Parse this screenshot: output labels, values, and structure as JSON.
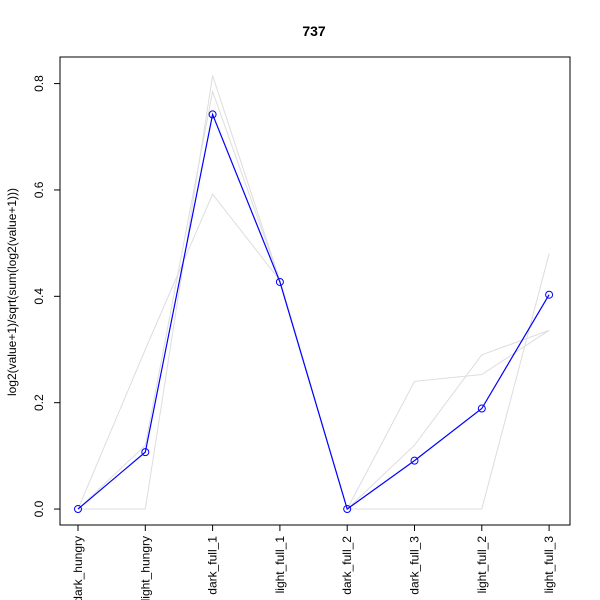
{
  "chart_data": {
    "type": "line",
    "title": "737",
    "xlabel": "",
    "ylabel": "log2(value+1)/sqrt(sum(log2(value+1)))",
    "categories": [
      "dark_hungry",
      "light_hungry",
      "dark_full_1",
      "light_full_1",
      "dark_full_2",
      "dark_full_3",
      "light_full_2",
      "light_full_3"
    ],
    "y_ticks": [
      "0.0",
      "0.2",
      "0.4",
      "0.6",
      "0.8"
    ],
    "y_tick_values": [
      0.0,
      0.2,
      0.4,
      0.6,
      0.8
    ],
    "ylim": [
      -0.03,
      0.85
    ],
    "grid": false,
    "highlight_color": "#0000ff",
    "background_color": "#dddddd",
    "series": [
      {
        "values": [
          0.0,
          0.107,
          0.742,
          0.427,
          0.0,
          0.091,
          0.189,
          0.403
        ],
        "highlight": true
      },
      {
        "values": [
          0.0,
          0.0,
          0.815,
          0.43,
          0.0,
          0.0,
          0.0,
          0.48
        ],
        "highlight": false
      },
      {
        "values": [
          0.0,
          0.3,
          0.592,
          0.43,
          0.0,
          0.24,
          0.253,
          0.336
        ],
        "highlight": false
      },
      {
        "values": [
          0.0,
          0.12,
          0.785,
          0.43,
          0.0,
          0.12,
          0.29,
          0.336
        ],
        "highlight": false
      }
    ]
  }
}
